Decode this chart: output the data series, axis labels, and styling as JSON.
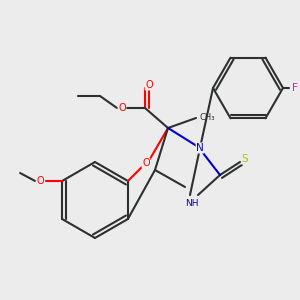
{
  "background_color": "#ececec",
  "bond_color": "#2d3030",
  "atom_colors": {
    "O": "#ff0000",
    "N": "#0000cc",
    "S": "#bbbb00",
    "F": "#ee00ee",
    "C": "#2d3030"
  },
  "figsize": [
    3.0,
    3.0
  ],
  "dpi": 100
}
